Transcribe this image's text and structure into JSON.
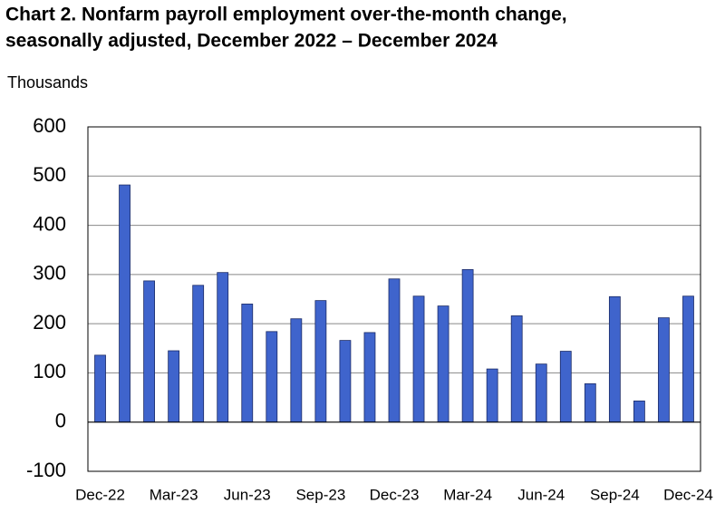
{
  "chart_data": {
    "type": "bar",
    "title": [
      "Chart 2. Nonfarm payroll employment over-the-month change,",
      "seasonally adjusted, December 2022 – December 2024"
    ],
    "y_label": "Thousands",
    "categories": [
      "Dec-22",
      null,
      null,
      "Mar-23",
      null,
      null,
      "Jun-23",
      null,
      null,
      "Sep-23",
      null,
      null,
      "Dec-23",
      null,
      null,
      "Mar-24",
      null,
      null,
      "Jun-24",
      null,
      null,
      "Sep-24",
      null,
      null,
      "Dec-24"
    ],
    "values": [
      136,
      482,
      287,
      145,
      278,
      304,
      240,
      184,
      210,
      247,
      166,
      182,
      291,
      256,
      236,
      310,
      108,
      216,
      118,
      144,
      78,
      255,
      43,
      212,
      256
    ],
    "color": "#3f64cc",
    "ylim": [
      -100,
      600
    ],
    "yticks": [
      -100,
      0,
      100,
      200,
      300,
      400,
      500,
      600
    ],
    "grid": true
  }
}
